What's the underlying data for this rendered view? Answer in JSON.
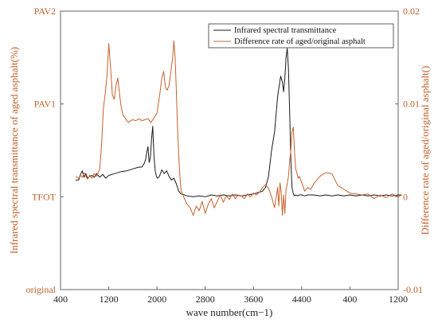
{
  "chart_data": {
    "type": "line",
    "xlabel": "wave number(cm−1)",
    "ylabel_left": "Infrared spectral transmittance of aged asphalt(%)",
    "ylabel_right": "Difference rate of aged/original asphalt()",
    "x_ticks": [
      "400",
      "1200",
      "2000",
      "2800",
      "3600",
      "4400",
      "400",
      "1200"
    ],
    "y_left_ticks": [
      "original",
      "TFOT",
      "PAV1",
      "PAV2"
    ],
    "y_right_ticks": [
      "-0.01",
      "0",
      "0.01",
      "0.02"
    ],
    "ylim_right": [
      -0.01,
      0.02
    ],
    "ylim_left": [
      0,
      3
    ],
    "grid": false,
    "legend_position": "top-right",
    "colors": {
      "transmittance": "#1a1a1a",
      "difference": "#c8602b",
      "axis_label": "#c0602b"
    },
    "series": [
      {
        "name": "Infrared spectral transmittance",
        "axis": "left",
        "x": [
          650,
          700,
          730,
          760,
          790,
          820,
          850,
          880,
          920,
          960,
          1000,
          1050,
          1100,
          1150,
          1200,
          1300,
          1400,
          1500,
          1600,
          1700,
          1750,
          1790,
          1810,
          1830,
          1850,
          1870,
          1890,
          1910,
          1930,
          1950,
          1970,
          1990,
          2010,
          2040,
          2080,
          2120,
          2160,
          2200,
          2240,
          2280,
          2320,
          2360,
          2400,
          2450,
          2500,
          2600,
          2700,
          2800,
          2900,
          3000,
          3100,
          3200,
          3300,
          3400,
          3500,
          3600,
          3700,
          3750,
          3800,
          3850,
          3900,
          3950,
          4000,
          4050,
          4080,
          4100,
          4120,
          4140,
          4160,
          4180,
          4200,
          4220,
          4240,
          4260,
          4280,
          4300,
          4330,
          4360,
          4400,
          4450,
          4500,
          4600,
          4700,
          4800,
          4900,
          5000,
          5100,
          5200,
          5300,
          5400,
          5500,
          5600,
          5700,
          5800,
          5900,
          6000,
          6060
        ],
        "y": [
          1.18,
          1.18,
          1.24,
          1.28,
          1.21,
          1.25,
          1.2,
          1.22,
          1.23,
          1.21,
          1.25,
          1.21,
          1.24,
          1.2,
          1.23,
          1.25,
          1.27,
          1.28,
          1.3,
          1.32,
          1.32,
          1.36,
          1.4,
          1.48,
          1.54,
          1.37,
          1.42,
          1.62,
          1.76,
          1.43,
          1.28,
          1.22,
          1.2,
          1.22,
          1.29,
          1.25,
          1.28,
          1.22,
          1.18,
          1.2,
          1.14,
          1.06,
          1.03,
          1.02,
          1.01,
          1.0,
          1.01,
          1.0,
          1.02,
          1.01,
          1.02,
          1.01,
          1.02,
          1.01,
          1.02,
          1.03,
          1.05,
          1.06,
          1.1,
          1.22,
          1.5,
          1.7,
          2.08,
          2.3,
          2.24,
          2.13,
          2.28,
          2.5,
          2.6,
          2.38,
          1.92,
          1.4,
          1.1,
          1.03,
          1.01,
          1.02,
          1.01,
          1.02,
          1.02,
          1.01,
          1.02,
          1.02,
          1.01,
          1.02,
          1.01,
          1.02,
          1.01,
          1.02,
          1.01,
          1.02,
          1.01,
          1.02,
          1.01,
          1.02,
          1.01,
          1.02,
          1.02
        ]
      },
      {
        "name": "Difference rate of aged/original asphalt",
        "axis": "right",
        "x": [
          650,
          700,
          730,
          760,
          790,
          820,
          850,
          880,
          920,
          960,
          1000,
          1050,
          1080,
          1110,
          1140,
          1170,
          1200,
          1230,
          1260,
          1290,
          1320,
          1350,
          1380,
          1410,
          1440,
          1470,
          1500,
          1530,
          1560,
          1600,
          1650,
          1700,
          1750,
          1800,
          1850,
          1900,
          1950,
          2000,
          2050,
          2080,
          2110,
          2140,
          2170,
          2200,
          2230,
          2260,
          2280,
          2300,
          2320,
          2340,
          2360,
          2380,
          2400,
          2430,
          2460,
          2500,
          2550,
          2600,
          2650,
          2700,
          2750,
          2800,
          2850,
          2900,
          2950,
          3000,
          3050,
          3100,
          3150,
          3200,
          3250,
          3300,
          3350,
          3400,
          3450,
          3500,
          3550,
          3600,
          3650,
          3700,
          3750,
          3800,
          3850,
          3900,
          3950,
          4000,
          4020,
          4040,
          4060,
          4080,
          4100,
          4120,
          4140,
          4160,
          4180,
          4200,
          4220,
          4240,
          4260,
          4280,
          4300,
          4320,
          4340,
          4360,
          4400,
          4450,
          4500,
          4550,
          4600,
          4650,
          4700,
          4800,
          4900,
          5000,
          5100,
          5200,
          5300,
          5400,
          5500,
          5600,
          5700,
          5800,
          5900,
          6000,
          6060
        ],
        "y": [
          0.0022,
          0.002,
          0.0023,
          0.0021,
          0.0026,
          0.0022,
          0.0019,
          0.0023,
          0.002,
          0.0025,
          0.0022,
          0.003,
          0.0055,
          0.0095,
          0.011,
          0.013,
          0.0165,
          0.014,
          0.011,
          0.0105,
          0.012,
          0.0128,
          0.011,
          0.0095,
          0.0088,
          0.0085,
          0.0082,
          0.008,
          0.0082,
          0.0083,
          0.0082,
          0.0084,
          0.0082,
          0.0083,
          0.0084,
          0.008,
          0.0085,
          0.009,
          0.0112,
          0.0128,
          0.0135,
          0.0118,
          0.0115,
          0.012,
          0.0135,
          0.015,
          0.0168,
          0.015,
          0.0115,
          0.0075,
          0.0045,
          0.0022,
          0.0006,
          0.0002,
          -0.0003,
          -0.0008,
          -0.0012,
          -0.002,
          -0.001,
          -0.0015,
          -0.0005,
          -0.0018,
          -0.0008,
          -0.0002,
          -0.0012,
          -0.0005,
          0.0002,
          -0.0006,
          0.0001,
          -0.0003,
          0.0003,
          -0.0002,
          0.0002,
          0.0001,
          -0.0002,
          0.0003,
          0.0,
          0.0004,
          0.0002,
          0.0005,
          0.001,
          0.0013,
          0.0009,
          0.0,
          -0.0012,
          0.001,
          -0.001,
          0.0015,
          0.0005,
          -0.002,
          0.0002,
          -0.0018,
          0.0008,
          0.0014,
          0.0022,
          0.0038,
          0.005,
          0.007,
          0.0075,
          0.0048,
          0.003,
          0.0026,
          0.002,
          0.0022,
          0.0015,
          0.0006,
          0.001,
          0.0008,
          0.0014,
          0.0018,
          0.0022,
          0.0026,
          0.0025,
          0.0012,
          0.0008,
          0.0004,
          0.0003,
          0.0002,
          0.0003,
          -0.0002,
          0.0002,
          -0.0001,
          0.0003,
          0.0,
          0.0002
        ]
      }
    ]
  }
}
